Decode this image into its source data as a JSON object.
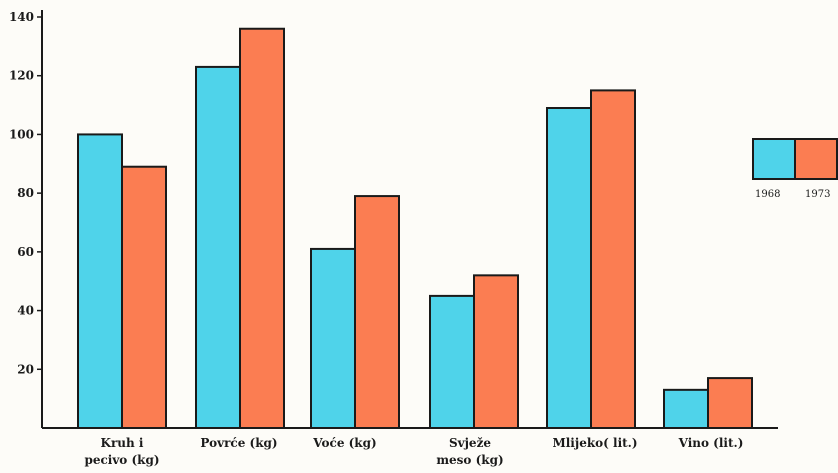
{
  "chart_data": {
    "type": "bar",
    "title": "",
    "xlabel": "",
    "ylabel": "",
    "ylim": [
      0,
      140
    ],
    "yticks": [
      20,
      40,
      60,
      80,
      100,
      120,
      140
    ],
    "categories": [
      [
        "Kruh i",
        "pecivo (kg)"
      ],
      [
        "Povrće (kg)"
      ],
      [
        "Voće (kg)"
      ],
      [
        "Svježe",
        "meso (kg)"
      ],
      [
        "Mlijeko( lit.)"
      ],
      [
        "Vino (lit.)"
      ]
    ],
    "series": [
      {
        "name": "1968",
        "color": "#4fd3ea",
        "values": [
          100,
          123,
          61,
          45,
          109,
          13
        ]
      },
      {
        "name": "1973",
        "color": "#fb7d52",
        "values": [
          89,
          136,
          79,
          52,
          115,
          17
        ]
      }
    ],
    "grid": false,
    "legend": "right"
  }
}
